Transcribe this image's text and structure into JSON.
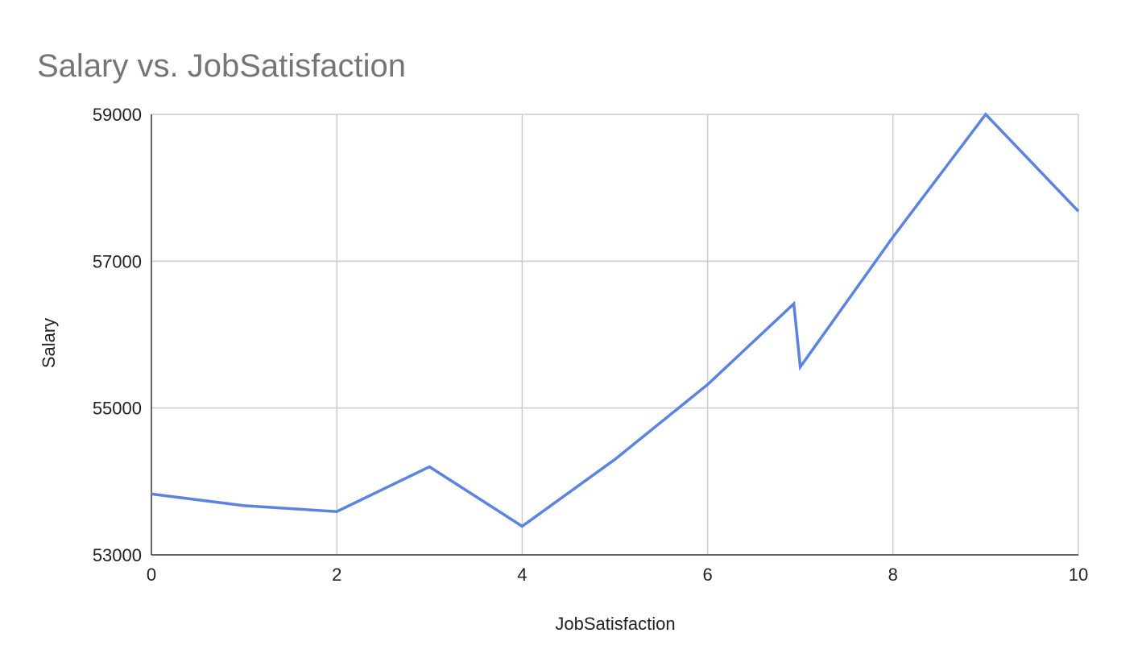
{
  "chart_data": {
    "type": "line",
    "title": "Salary vs. JobSatisfaction",
    "xlabel": "JobSatisfaction",
    "ylabel": "Salary",
    "xlim": [
      0,
      10
    ],
    "ylim": [
      53000,
      59000
    ],
    "x_ticks": [
      0,
      2,
      4,
      6,
      8,
      10
    ],
    "y_ticks": [
      53000,
      55000,
      57000,
      59000
    ],
    "grid": true,
    "legend": "none",
    "series": [
      {
        "color": "#5b83e0",
        "x": [
          0,
          1,
          2,
          3,
          4,
          5,
          6,
          6.93,
          7,
          8,
          9,
          10
        ],
        "y": [
          53830,
          53670,
          53590,
          54200,
          53390,
          54300,
          55320,
          56420,
          55560,
          57330,
          59000,
          57680
        ]
      }
    ]
  }
}
